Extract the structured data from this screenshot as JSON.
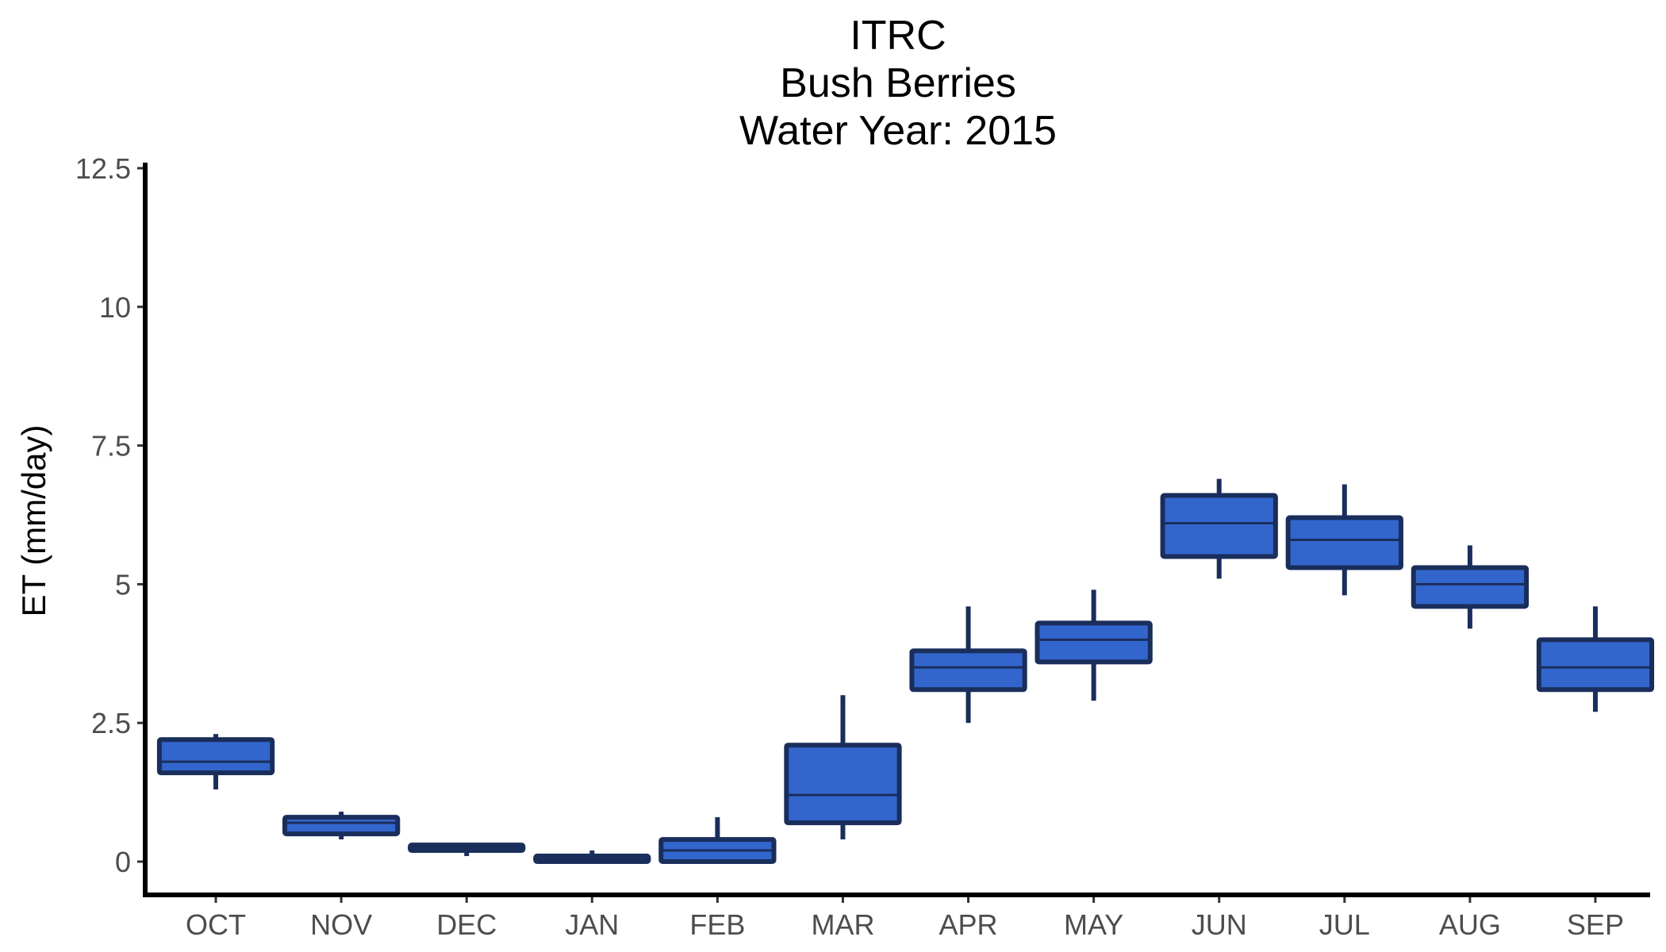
{
  "chart_data": {
    "type": "boxplot",
    "title_lines": [
      "ITRC",
      "Bush Berries",
      "Water Year: 2015"
    ],
    "xlabel": "",
    "ylabel": "ET (mm/day)",
    "ylim": [
      -0.6,
      12.6
    ],
    "yticks": [
      0,
      2.5,
      5,
      7.5,
      10,
      12.5
    ],
    "ytick_labels": [
      "0",
      "2.5",
      "5",
      "7.5",
      "10",
      "12.5"
    ],
    "categories": [
      "OCT",
      "NOV",
      "DEC",
      "JAN",
      "FEB",
      "MAR",
      "APR",
      "MAY",
      "JUN",
      "JUL",
      "AUG",
      "SEP"
    ],
    "boxes": [
      {
        "min": 1.3,
        "q1": 1.6,
        "median": 1.8,
        "q3": 2.2,
        "max": 2.3
      },
      {
        "min": 0.4,
        "q1": 0.5,
        "median": 0.7,
        "q3": 0.8,
        "max": 0.9
      },
      {
        "min": 0.1,
        "q1": 0.2,
        "median": 0.25,
        "q3": 0.3,
        "max": 0.3
      },
      {
        "min": 0.0,
        "q1": 0.0,
        "median": 0.05,
        "q3": 0.1,
        "max": 0.2
      },
      {
        "min": 0.0,
        "q1": 0.0,
        "median": 0.2,
        "q3": 0.4,
        "max": 0.8
      },
      {
        "min": 0.4,
        "q1": 0.7,
        "median": 1.2,
        "q3": 2.1,
        "max": 3.0
      },
      {
        "min": 2.5,
        "q1": 3.1,
        "median": 3.5,
        "q3": 3.8,
        "max": 4.6
      },
      {
        "min": 2.9,
        "q1": 3.6,
        "median": 4.0,
        "q3": 4.3,
        "max": 4.9
      },
      {
        "min": 5.1,
        "q1": 5.5,
        "median": 6.1,
        "q3": 6.6,
        "max": 6.9
      },
      {
        "min": 4.8,
        "q1": 5.3,
        "median": 5.8,
        "q3": 6.2,
        "max": 6.8
      },
      {
        "min": 4.2,
        "q1": 4.6,
        "median": 5.0,
        "q3": 5.3,
        "max": 5.7
      },
      {
        "min": 2.7,
        "q1": 3.1,
        "median": 3.5,
        "q3": 4.0,
        "max": 4.6
      }
    ],
    "box_fill": "#3366cc",
    "box_stroke": "#1a2e5c",
    "axis_color": "#000000",
    "grid": false,
    "legend": "none"
  }
}
